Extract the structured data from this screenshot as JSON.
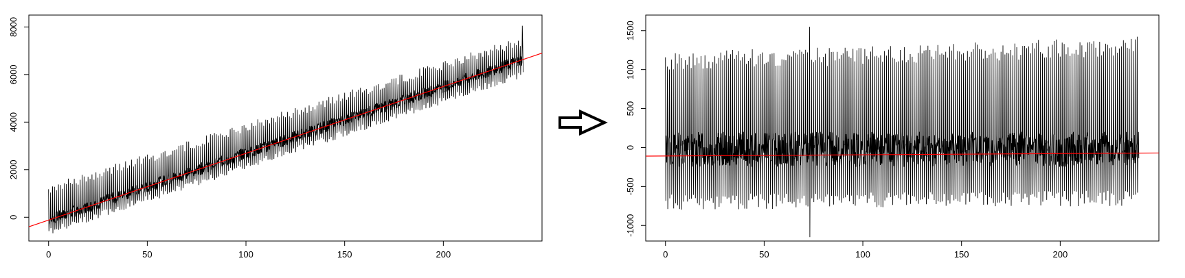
{
  "chart_data": [
    {
      "type": "line",
      "title": "",
      "xlabel": "",
      "ylabel": "",
      "xlim": [
        -10,
        250
      ],
      "ylim": [
        -1000,
        8500
      ],
      "x_ticks": [
        0,
        50,
        100,
        150,
        200
      ],
      "x_tick_labels": [
        "0",
        "50",
        "100",
        "150",
        "200"
      ],
      "y_ticks": [
        0,
        2000,
        4000,
        6000,
        8000
      ],
      "y_tick_labels": [
        "0",
        "2000",
        "4000",
        "6000",
        "8000"
      ],
      "grid": false,
      "series": [
        {
          "color": "#000000",
          "points": 240,
          "trend": [
            -100,
            6600
          ],
          "swing_high": [
            1100,
            7300
          ],
          "swing_low": [
            -600,
            6000
          ]
        },
        {
          "color": "#ff0000",
          "kind": "trend-line",
          "x": [
            -10,
            250
          ],
          "y": [
            -400,
            6900
          ]
        }
      ]
    },
    {
      "type": "line",
      "title": "",
      "xlabel": "",
      "ylabel": "",
      "xlim": [
        -10,
        250
      ],
      "ylim": [
        -1200,
        1700
      ],
      "x_ticks": [
        0,
        50,
        100,
        150,
        200
      ],
      "x_tick_labels": [
        "0",
        "50",
        "100",
        "150",
        "200"
      ],
      "y_ticks": [
        -1000,
        -500,
        0,
        500,
        1000,
        1500
      ],
      "y_tick_labels": [
        "-1000",
        "-500",
        "0",
        "500",
        "1000",
        "1500"
      ],
      "grid": false,
      "series": [
        {
          "color": "#000000",
          "points": 240,
          "swing_high": [
            1100,
            1300
          ],
          "swing_low": [
            -700,
            -650
          ],
          "max": 1550,
          "min": -1150
        },
        {
          "color": "#ff0000",
          "kind": "trend-line",
          "x": [
            -10,
            250
          ],
          "y": [
            -110,
            -70
          ]
        }
      ]
    }
  ],
  "arrow": {
    "icon": "right-arrow-icon"
  }
}
